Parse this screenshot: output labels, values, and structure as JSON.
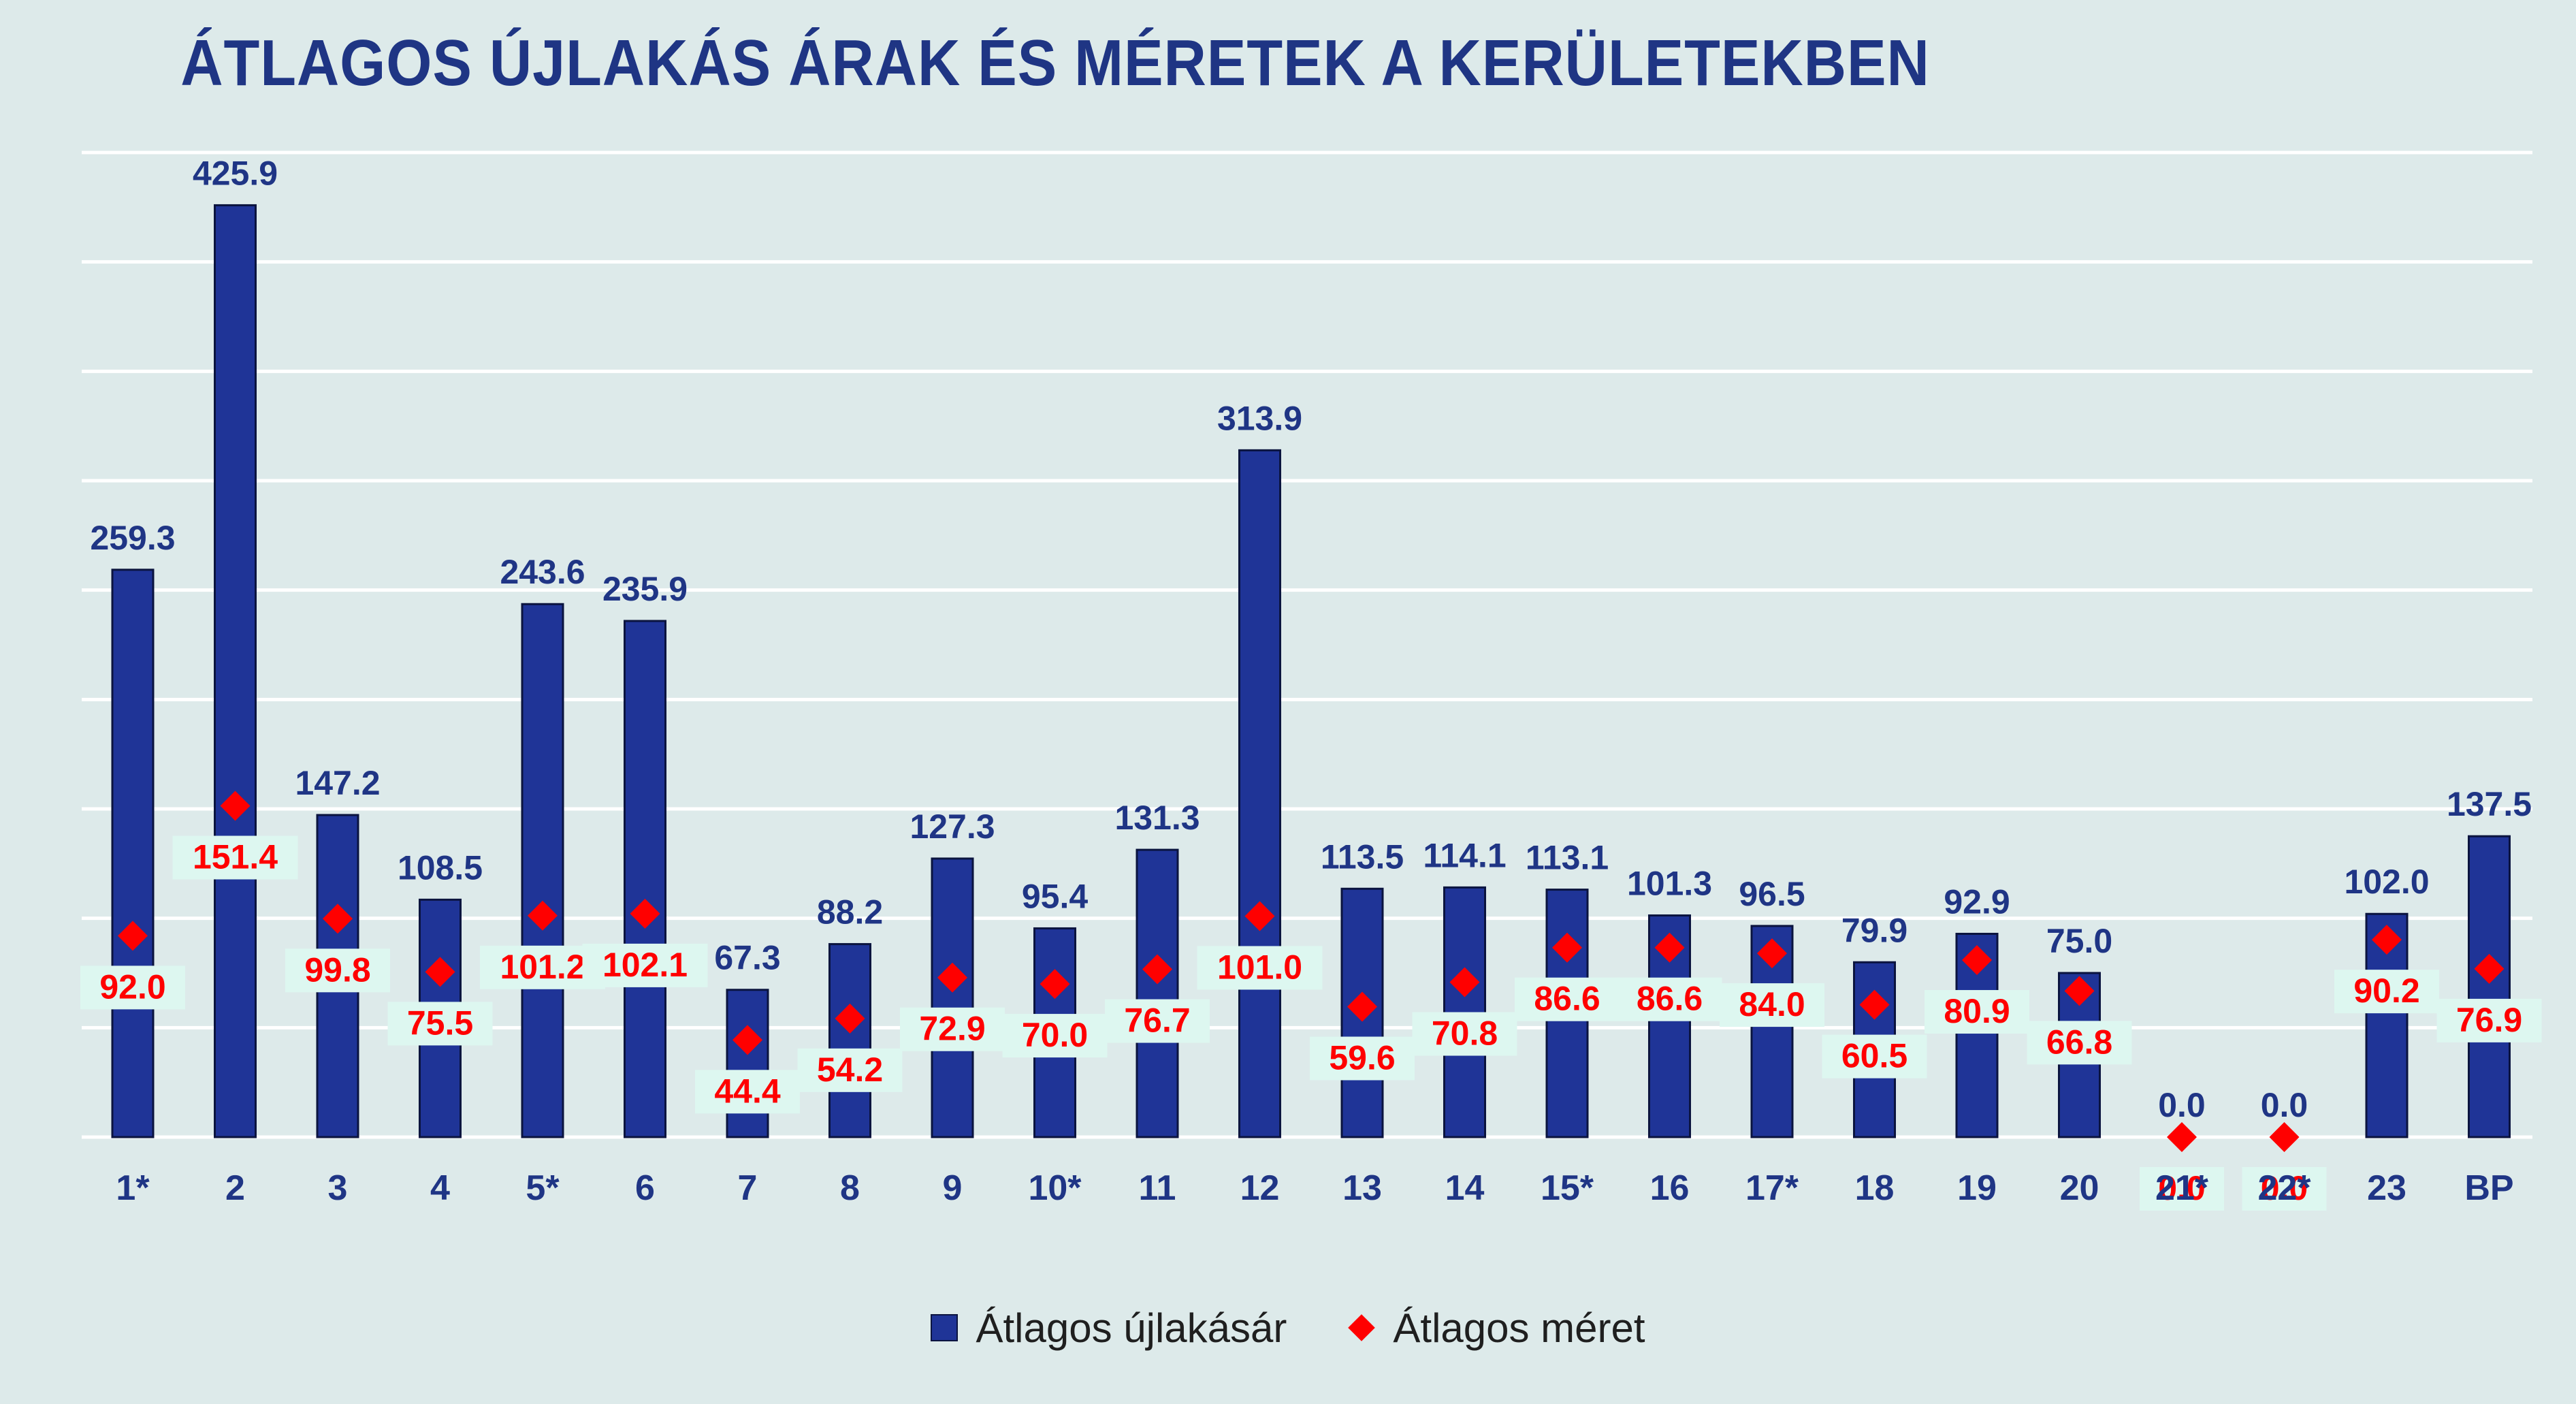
{
  "chart_data": {
    "type": "bar",
    "title": "ÁTLAGOS ÚJLAKÁS ÁRAK ÉS MÉRETEK A KERÜLETEKBEN",
    "xlabel": "",
    "ylabel": "",
    "categories": [
      "1*",
      "2",
      "3",
      "4",
      "5*",
      "6",
      "7",
      "8",
      "9",
      "10*",
      "11",
      "12",
      "13",
      "14",
      "15*",
      "16",
      "17*",
      "18",
      "19",
      "20",
      "21*",
      "22*",
      "23",
      "BP"
    ],
    "series": [
      {
        "name": "Átlagos újlakásár",
        "type": "bar",
        "color": "#1f3497",
        "values": [
          259.3,
          425.9,
          147.2,
          108.5,
          243.6,
          235.9,
          67.3,
          88.2,
          127.3,
          95.4,
          131.3,
          313.9,
          113.5,
          114.1,
          113.1,
          101.3,
          96.5,
          79.9,
          92.9,
          75.0,
          0.0,
          0.0,
          102.0,
          137.5
        ],
        "labels": [
          "259.3",
          "425.9",
          "147.2",
          "108.5",
          "243.6",
          "235.9",
          "67.3",
          "88.2",
          "127.3",
          "95.4",
          "131.3",
          "313.9",
          "113.5",
          "114.1",
          "113.1",
          "101.3",
          "96.5",
          "79.9",
          "92.9",
          "75.0",
          "0.0",
          "0.0",
          "102.0",
          "137.5"
        ]
      },
      {
        "name": "Átlagos méret",
        "type": "scatter",
        "marker": "diamond",
        "color": "#ff0000",
        "values": [
          92.0,
          151.4,
          99.8,
          75.5,
          101.2,
          102.1,
          44.4,
          54.2,
          72.9,
          70.0,
          76.7,
          101.0,
          59.6,
          70.8,
          86.6,
          86.6,
          84.0,
          60.5,
          80.9,
          66.8,
          0.0,
          0.0,
          90.2,
          76.9
        ],
        "labels": [
          "92.0",
          "151.4",
          "99.8",
          "75.5",
          "101.2",
          "102.1",
          "44.4",
          "54.2",
          "72.9",
          "70.0",
          "76.7",
          "101.0",
          "59.6",
          "70.8",
          "86.6",
          "86.6",
          "84.0",
          "60.5",
          "80.9",
          "66.8",
          "0.0",
          "0.0",
          "90.2",
          "76.9"
        ]
      }
    ],
    "ylim": [
      0,
      450
    ],
    "gridlines": true,
    "grid_color": "#ffffff",
    "background": "#ddeaea",
    "legend_position": "bottom"
  }
}
